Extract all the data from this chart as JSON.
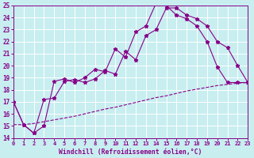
{
  "xlabel": "Windchill (Refroidissement éolien,°C)",
  "xlim": [
    0,
    23
  ],
  "ylim": [
    14,
    25
  ],
  "yticks": [
    14,
    15,
    16,
    17,
    18,
    19,
    20,
    21,
    22,
    23,
    24,
    25
  ],
  "xticks": [
    0,
    1,
    2,
    3,
    4,
    5,
    6,
    7,
    8,
    9,
    10,
    11,
    12,
    13,
    14,
    15,
    16,
    17,
    18,
    19,
    20,
    21,
    22,
    23
  ],
  "bg_color": "#c8eef0",
  "grid_color": "#aadddd",
  "line_color": "#880088",
  "curve1_x": [
    0,
    1,
    2,
    3,
    4,
    5,
    6,
    7,
    8,
    9,
    10,
    11,
    12,
    13,
    14,
    15,
    16,
    17,
    18,
    19,
    20,
    21,
    22,
    23
  ],
  "curve1_y": [
    17.0,
    15.1,
    14.4,
    15.0,
    18.7,
    18.9,
    18.6,
    19.0,
    19.7,
    19.5,
    21.4,
    20.7,
    22.8,
    23.3,
    25.2,
    25.0,
    24.2,
    23.9,
    23.3,
    22.0,
    19.9,
    18.6,
    18.6,
    18.6
  ],
  "curve2_x": [
    0,
    1,
    2,
    3,
    4,
    5,
    6,
    7,
    8,
    9,
    10,
    11,
    12,
    13,
    14,
    15,
    16,
    17,
    18,
    19,
    20,
    21,
    22,
    23
  ],
  "curve2_y": [
    17.0,
    15.1,
    14.4,
    17.2,
    17.3,
    18.7,
    18.85,
    18.6,
    18.9,
    19.6,
    19.3,
    21.2,
    20.5,
    22.5,
    23.0,
    24.8,
    24.8,
    24.2,
    23.9,
    23.3,
    22.0,
    21.5,
    20.0,
    18.6
  ],
  "curve3_x": [
    0,
    1,
    2,
    3,
    4,
    5,
    6,
    7,
    8,
    9,
    10,
    11,
    12,
    13,
    14,
    15,
    16,
    17,
    18,
    19,
    20,
    21,
    22,
    23
  ],
  "curve3_y": [
    15.1,
    15.1,
    15.2,
    15.35,
    15.5,
    15.65,
    15.8,
    16.0,
    16.2,
    16.4,
    16.55,
    16.75,
    16.95,
    17.15,
    17.35,
    17.5,
    17.7,
    17.9,
    18.05,
    18.2,
    18.35,
    18.45,
    18.55,
    18.6
  ]
}
